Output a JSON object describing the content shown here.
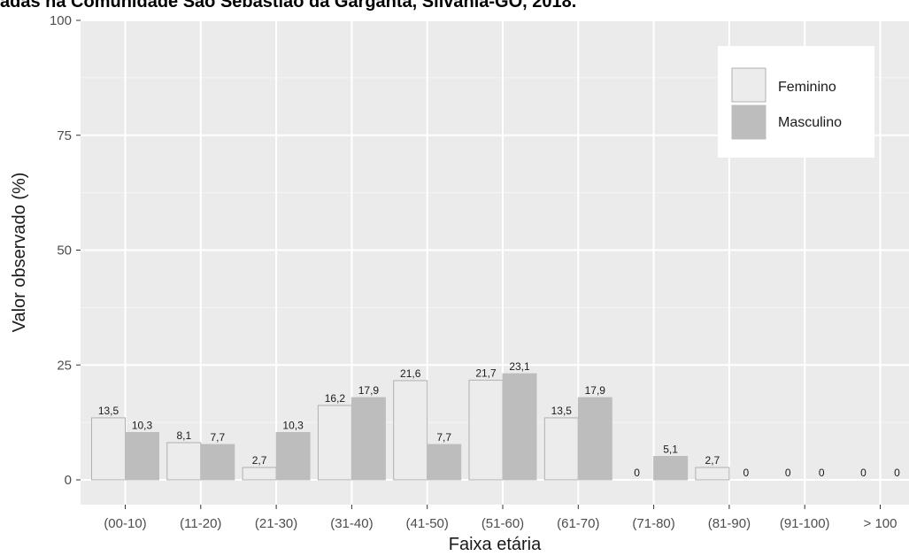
{
  "caption": "adas na Comunidade São Sebastião da Garganta, Silvânia-GO, 2018.",
  "chart_data": {
    "type": "bar",
    "title": "",
    "xlabel": "Faixa etária",
    "ylabel": "Valor observado (%)",
    "ylim": [
      0,
      100
    ],
    "yticks": [
      0,
      25,
      50,
      75,
      100
    ],
    "grid": true,
    "legend_position": "top-right",
    "categories": [
      "(00-10)",
      "(11-20)",
      "(21-30)",
      "(31-40)",
      "(41-50)",
      "(51-60)",
      "(61-70)",
      "(71-80)",
      "(81-90)",
      "(91-100)",
      "> 100"
    ],
    "series": [
      {
        "name": "Feminino",
        "color": "#ececec",
        "values": [
          13.5,
          8.1,
          2.7,
          16.2,
          21.6,
          21.7,
          13.5,
          0,
          2.7,
          0,
          0
        ],
        "labels": [
          "13,5",
          "8,1",
          "2,7",
          "16,2",
          "21,6",
          "21,7",
          "13,5",
          "0",
          "2,7",
          "0",
          "0"
        ]
      },
      {
        "name": "Masculino",
        "color": "#bdbdbd",
        "values": [
          10.3,
          7.7,
          10.3,
          17.9,
          7.7,
          23.1,
          17.9,
          5.1,
          0,
          0,
          0
        ],
        "labels": [
          "10,3",
          "7,7",
          "10,3",
          "17,9",
          "7,7",
          "23,1",
          "17,9",
          "5,1",
          "0",
          "0",
          "0"
        ]
      }
    ]
  }
}
